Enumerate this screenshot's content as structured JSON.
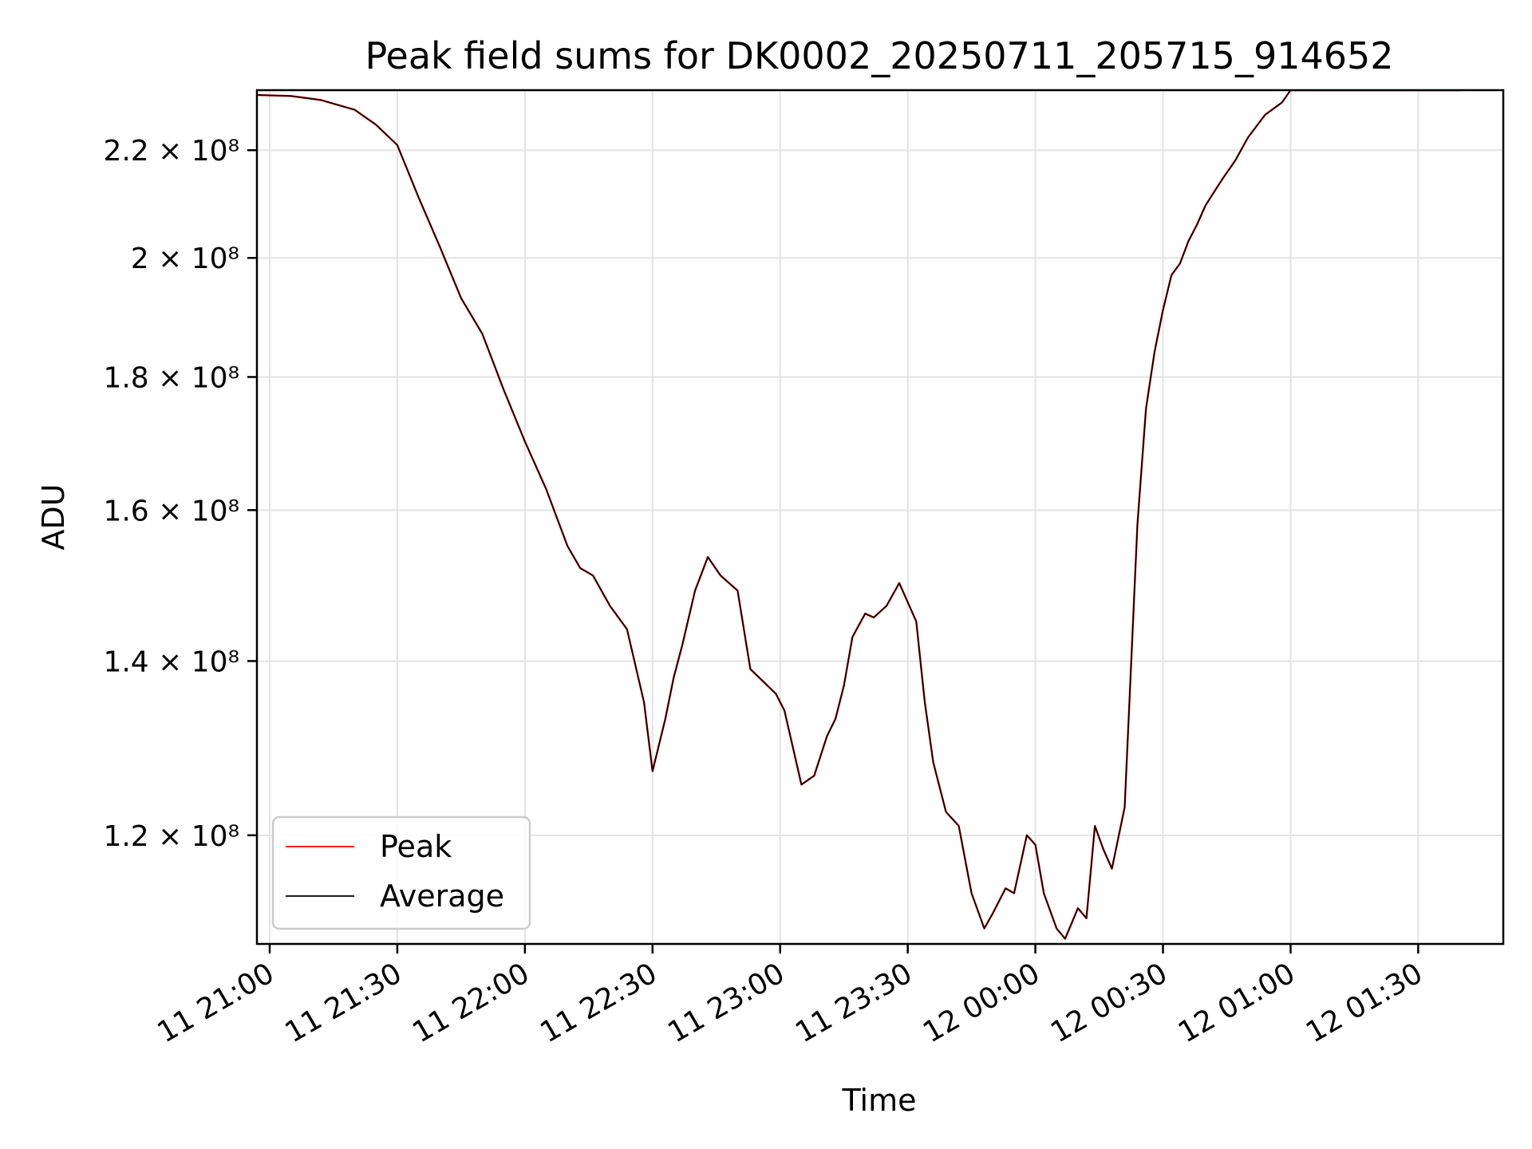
{
  "chart_data": {
    "type": "line",
    "title": "Peak field sums for DK0002_20250711_205715_914652",
    "xlabel": "Time",
    "ylabel": "ADU",
    "y_scale": "log",
    "xlim": [
      "2025-07-11 20:57",
      "2025-07-12 01:50"
    ],
    "ylim": [
      109000000,
      232000000
    ],
    "x_ticks": [
      {
        "value": "2025-07-11 21:00",
        "label": "11 21:00"
      },
      {
        "value": "2025-07-11 21:30",
        "label": "11 21:30"
      },
      {
        "value": "2025-07-11 22:00",
        "label": "11 22:00"
      },
      {
        "value": "2025-07-11 22:30",
        "label": "11 22:30"
      },
      {
        "value": "2025-07-11 23:00",
        "label": "11 23:00"
      },
      {
        "value": "2025-07-11 23:30",
        "label": "11 23:30"
      },
      {
        "value": "2025-07-12 00:00",
        "label": "12 00:00"
      },
      {
        "value": "2025-07-12 00:30",
        "label": "12 00:30"
      },
      {
        "value": "2025-07-12 01:00",
        "label": "12 01:00"
      },
      {
        "value": "2025-07-12 01:30",
        "label": "12 01:30"
      }
    ],
    "y_ticks": [
      {
        "value": 120000000,
        "label": "1.2 × 10⁸"
      },
      {
        "value": 140000000,
        "label": "1.4 × 10⁸"
      },
      {
        "value": 160000000,
        "label": "1.6 × 10⁸"
      },
      {
        "value": 180000000,
        "label": "1.8 × 10⁸"
      },
      {
        "value": 200000000,
        "label": "2 × 10⁸"
      },
      {
        "value": 220000000,
        "label": "2.2 × 10⁸"
      }
    ],
    "grid": true,
    "legend_position": "lower-left",
    "x": [
      "2025-07-11 20:57",
      "2025-07-11 21:05",
      "2025-07-11 21:12",
      "2025-07-11 21:20",
      "2025-07-11 21:25",
      "2025-07-11 21:30",
      "2025-07-11 21:35",
      "2025-07-11 21:40",
      "2025-07-11 21:45",
      "2025-07-11 21:50",
      "2025-07-11 21:55",
      "2025-07-11 22:00",
      "2025-07-11 22:05",
      "2025-07-11 22:10",
      "2025-07-11 22:13",
      "2025-07-11 22:16",
      "2025-07-11 22:20",
      "2025-07-11 22:24",
      "2025-07-11 22:28",
      "2025-07-11 22:30",
      "2025-07-11 22:33",
      "2025-07-11 22:35",
      "2025-07-11 22:37",
      "2025-07-11 22:40",
      "2025-07-11 22:43",
      "2025-07-11 22:46",
      "2025-07-11 22:50",
      "2025-07-11 22:53",
      "2025-07-11 22:56",
      "2025-07-11 22:59",
      "2025-07-11 23:01",
      "2025-07-11 23:05",
      "2025-07-11 23:08",
      "2025-07-11 23:11",
      "2025-07-11 23:13",
      "2025-07-11 23:15",
      "2025-07-11 23:17",
      "2025-07-11 23:20",
      "2025-07-11 23:22",
      "2025-07-11 23:25",
      "2025-07-11 23:28",
      "2025-07-11 23:32",
      "2025-07-11 23:34",
      "2025-07-11 23:36",
      "2025-07-11 23:39",
      "2025-07-11 23:42",
      "2025-07-11 23:45",
      "2025-07-11 23:48",
      "2025-07-11 23:50",
      "2025-07-11 23:53",
      "2025-07-11 23:55",
      "2025-07-11 23:58",
      "2025-07-12 00:00",
      "2025-07-12 00:02",
      "2025-07-12 00:05",
      "2025-07-12 00:07",
      "2025-07-12 00:10",
      "2025-07-12 00:12",
      "2025-07-12 00:14",
      "2025-07-12 00:16",
      "2025-07-12 00:18",
      "2025-07-12 00:21",
      "2025-07-12 00:24",
      "2025-07-12 00:26",
      "2025-07-12 00:28",
      "2025-07-12 00:30",
      "2025-07-12 00:32",
      "2025-07-12 00:34",
      "2025-07-12 00:36",
      "2025-07-12 00:38",
      "2025-07-12 00:40",
      "2025-07-12 00:42",
      "2025-07-12 00:44",
      "2025-07-12 00:47",
      "2025-07-12 00:50",
      "2025-07-12 00:54",
      "2025-07-12 00:58",
      "2025-07-12 01:00",
      "2025-07-12 01:03",
      "2025-07-12 01:07",
      "2025-07-12 01:10",
      "2025-07-12 01:15",
      "2025-07-12 01:20",
      "2025-07-12 01:25",
      "2025-07-12 01:30",
      "2025-07-12 01:35",
      "2025-07-12 01:40"
    ],
    "series": [
      {
        "name": "Peak",
        "color": "#ff0000",
        "values": [
          231000000,
          230800000,
          230000000,
          228000000,
          225000000,
          221000000,
          211000000,
          202000000,
          193000000,
          187000000,
          178000000,
          170000000,
          163000000,
          155000000,
          152000000,
          151000000,
          147000000,
          144000000,
          135000000,
          127000000,
          133000000,
          138000000,
          142000000,
          149000000,
          153500000,
          151000000,
          149000000,
          139000000,
          137500000,
          136000000,
          134000000,
          125500000,
          126500000,
          131000000,
          133000000,
          137000000,
          143000000,
          146000000,
          145500000,
          147000000,
          150000000,
          145000000,
          135000000,
          128000000,
          122500000,
          121000000,
          114000000,
          110500000,
          112000000,
          114500000,
          114000000,
          120000000,
          119000000,
          114000000,
          110500000,
          109500000,
          112500000,
          111500000,
          121000000,
          118500000,
          116500000,
          123000000,
          158000000,
          175000000,
          184000000,
          191000000,
          197000000,
          199000000,
          203000000,
          206000000,
          209500000,
          212000000,
          214500000,
          218000000,
          222500000,
          227000000,
          229500000,
          232000000,
          232000000,
          232000000,
          232000000,
          232000000,
          232000000,
          232000000,
          232000000,
          232000000,
          232000000
        ]
      },
      {
        "name": "Average",
        "color": "#000000",
        "values": [
          231000000,
          230800000,
          230000000,
          228000000,
          225000000,
          221000000,
          211000000,
          202000000,
          193000000,
          187000000,
          178000000,
          170000000,
          163000000,
          155000000,
          152000000,
          151000000,
          147000000,
          144000000,
          135000000,
          127000000,
          133000000,
          138000000,
          142000000,
          149000000,
          153500000,
          151000000,
          149000000,
          139000000,
          137500000,
          136000000,
          134000000,
          125500000,
          126500000,
          131000000,
          133000000,
          137000000,
          143000000,
          146000000,
          145500000,
          147000000,
          150000000,
          145000000,
          135000000,
          128000000,
          122500000,
          121000000,
          114000000,
          110500000,
          112000000,
          114500000,
          114000000,
          120000000,
          119000000,
          114000000,
          110500000,
          109500000,
          112500000,
          111500000,
          121000000,
          118500000,
          116500000,
          123000000,
          158000000,
          175000000,
          184000000,
          191000000,
          197000000,
          199000000,
          203000000,
          206000000,
          209500000,
          212000000,
          214500000,
          218000000,
          222500000,
          227000000,
          229500000,
          232000000,
          232000000,
          232000000,
          232000000,
          232000000,
          232000000,
          232000000,
          232000000,
          232000000,
          232000000
        ]
      }
    ]
  }
}
